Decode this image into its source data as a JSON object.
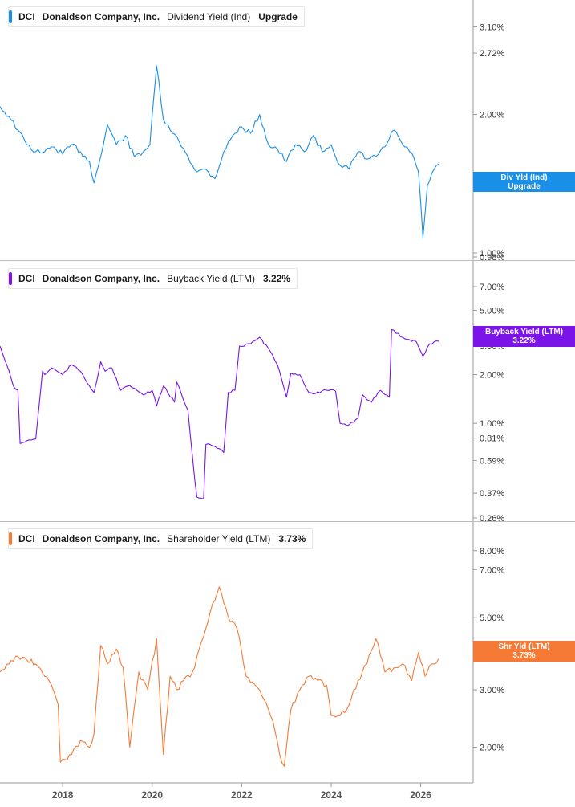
{
  "chart_data": [
    {
      "type": "line",
      "ticker": "DCI",
      "company": "Donaldson Company, Inc.",
      "metric": "Dividend Yield (Ind)",
      "current_value": "Upgrade",
      "tag_label": "Div Yld (Ind)",
      "tag_value": "Upgrade",
      "color": "#1a8fe8",
      "scale": "log",
      "ylim": [
        0.98,
        3.3
      ],
      "yticks": [
        "3.10%",
        "2.72%",
        "2.00%",
        "1.00%",
        "0.98%"
      ],
      "ytick_values": [
        3.1,
        2.72,
        2.0,
        1.0,
        0.98
      ],
      "x": [
        2016.6,
        2016.8,
        2017.0,
        2017.2,
        2017.4,
        2017.6,
        2017.8,
        2018.0,
        2018.2,
        2018.4,
        2018.6,
        2018.7,
        2018.85,
        2019.0,
        2019.2,
        2019.4,
        2019.6,
        2019.8,
        2019.95,
        2020.1,
        2020.25,
        2020.4,
        2020.6,
        2020.8,
        2021.0,
        2021.2,
        2021.4,
        2021.6,
        2021.8,
        2022.0,
        2022.2,
        2022.4,
        2022.6,
        2022.8,
        2023.0,
        2023.2,
        2023.4,
        2023.6,
        2023.8,
        2024.0,
        2024.2,
        2024.4,
        2024.6,
        2024.8,
        2025.0,
        2025.2,
        2025.4,
        2025.6,
        2025.8,
        2025.95,
        2026.05,
        2026.15,
        2026.3,
        2026.4
      ],
      "y": [
        2.08,
        1.98,
        1.85,
        1.72,
        1.66,
        1.66,
        1.7,
        1.64,
        1.72,
        1.66,
        1.58,
        1.42,
        1.62,
        1.9,
        1.72,
        1.8,
        1.62,
        1.66,
        1.72,
        2.55,
        1.95,
        1.85,
        1.75,
        1.62,
        1.5,
        1.52,
        1.45,
        1.66,
        1.8,
        1.88,
        1.82,
        2.0,
        1.72,
        1.68,
        1.58,
        1.72,
        1.66,
        1.8,
        1.66,
        1.72,
        1.55,
        1.52,
        1.66,
        1.6,
        1.62,
        1.7,
        1.85,
        1.72,
        1.65,
        1.5,
        1.08,
        1.4,
        1.52,
        1.56
      ]
    },
    {
      "type": "line",
      "ticker": "DCI",
      "company": "Donaldson Company, Inc.",
      "metric": "Buyback Yield (LTM)",
      "current_value": "3.22%",
      "tag_label": "Buyback Yield (LTM)",
      "tag_value": "3.22%",
      "color": "#7a14e8",
      "scale": "log",
      "ylim": [
        0.26,
        8.5
      ],
      "yticks": [
        "7.00%",
        "5.00%",
        "3.00%",
        "2.00%",
        "1.00%",
        "0.81%",
        "0.59%",
        "0.37%",
        "0.26%"
      ],
      "ytick_values": [
        7.0,
        5.0,
        3.0,
        2.0,
        1.0,
        0.81,
        0.59,
        0.37,
        0.26
      ],
      "x": [
        2016.6,
        2016.75,
        2016.9,
        2017.0,
        2017.05,
        2017.2,
        2017.4,
        2017.55,
        2017.6,
        2017.75,
        2018.0,
        2018.2,
        2018.4,
        2018.6,
        2018.7,
        2018.85,
        2018.95,
        2019.1,
        2019.3,
        2019.45,
        2019.6,
        2019.8,
        2020.0,
        2020.1,
        2020.25,
        2020.5,
        2020.55,
        2020.8,
        2020.95,
        2021.0,
        2021.15,
        2021.2,
        2021.4,
        2021.6,
        2021.7,
        2021.85,
        2021.95,
        2022.2,
        2022.4,
        2022.6,
        2022.8,
        2023.0,
        2023.1,
        2023.3,
        2023.5,
        2023.6,
        2023.9,
        2024.1,
        2024.2,
        2024.4,
        2024.6,
        2024.7,
        2024.9,
        2025.1,
        2025.3,
        2025.35,
        2025.6,
        2025.9,
        2026.05,
        2026.2,
        2026.4
      ],
      "y": [
        3.0,
        2.3,
        1.7,
        1.6,
        0.75,
        0.78,
        0.8,
        2.1,
        2.0,
        2.2,
        2.0,
        2.3,
        2.1,
        1.7,
        1.55,
        2.4,
        2.1,
        2.2,
        1.6,
        1.7,
        1.65,
        1.5,
        1.6,
        1.28,
        1.7,
        1.35,
        1.8,
        1.2,
        0.45,
        0.35,
        0.34,
        0.74,
        0.72,
        0.66,
        1.55,
        1.6,
        3.0,
        3.1,
        3.4,
        2.9,
        2.3,
        1.45,
        2.05,
        2.0,
        1.55,
        1.52,
        1.6,
        1.58,
        1.0,
        0.98,
        1.08,
        1.5,
        1.35,
        1.6,
        1.45,
        3.8,
        3.4,
        3.2,
        2.6,
        3.1,
        3.22
      ]
    },
    {
      "type": "line",
      "ticker": "DCI",
      "company": "Donaldson Company, Inc.",
      "metric": "Shareholder Yield (LTM)",
      "current_value": "3.73%",
      "tag_label": "Shr Yld (LTM)",
      "tag_value": "3.73%",
      "color": "#f57a36",
      "scale": "log",
      "ylim": [
        1.6,
        9.0
      ],
      "yticks": [
        "8.00%",
        "7.00%",
        "5.00%",
        "3.00%",
        "2.00%"
      ],
      "ytick_values": [
        8.0,
        7.0,
        5.0,
        3.0,
        2.0
      ],
      "x": [
        2016.6,
        2016.8,
        2017.0,
        2017.2,
        2017.4,
        2017.6,
        2017.75,
        2017.9,
        2017.95,
        2018.2,
        2018.4,
        2018.6,
        2018.7,
        2018.85,
        2019.0,
        2019.2,
        2019.35,
        2019.5,
        2019.7,
        2019.9,
        2020.1,
        2020.25,
        2020.4,
        2020.55,
        2020.7,
        2020.9,
        2021.1,
        2021.3,
        2021.5,
        2021.7,
        2021.9,
        2022.1,
        2022.3,
        2022.5,
        2022.7,
        2022.85,
        2022.95,
        2023.1,
        2023.3,
        2023.5,
        2023.7,
        2023.9,
        2024.0,
        2024.2,
        2024.4,
        2024.6,
        2024.8,
        2025.0,
        2025.2,
        2025.4,
        2025.6,
        2025.8,
        2025.95,
        2026.1,
        2026.25,
        2026.4
      ],
      "y": [
        3.4,
        3.6,
        3.8,
        3.7,
        3.6,
        3.3,
        3.1,
        2.7,
        1.8,
        1.9,
        2.1,
        2.0,
        2.2,
        4.1,
        3.6,
        4.0,
        3.5,
        2.0,
        3.4,
        3.0,
        4.3,
        1.9,
        3.3,
        3.0,
        3.2,
        3.4,
        4.2,
        5.2,
        6.2,
        5.0,
        4.6,
        3.3,
        3.1,
        2.8,
        2.4,
        1.9,
        1.75,
        2.6,
        3.0,
        3.3,
        3.2,
        3.1,
        2.5,
        2.5,
        2.7,
        3.2,
        3.6,
        4.3,
        3.4,
        3.5,
        3.6,
        3.2,
        3.9,
        3.3,
        3.6,
        3.73
      ]
    }
  ],
  "xaxis": {
    "ticks": [
      "2018",
      "2020",
      "2022",
      "2024",
      "2026"
    ],
    "tick_values": [
      2018,
      2020,
      2022,
      2024,
      2026
    ],
    "range": [
      2016.6,
      2026.85
    ]
  }
}
